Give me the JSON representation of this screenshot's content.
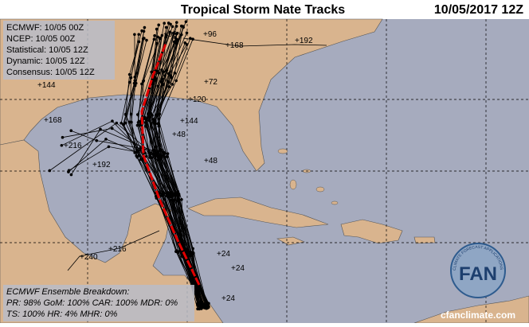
{
  "header": {
    "title": "Tropical Storm Nate Tracks",
    "date": "10/05/2017 12Z"
  },
  "legend": [
    "ECMWF: 10/05 00Z",
    "NCEP: 10/05 00Z",
    "Statistical: 10/05 12Z",
    "Dynamic: 10/05 12Z",
    "Consensus: 10/05 12Z"
  ],
  "breakdown": {
    "title": "ECMWF Ensemble Breakdown:",
    "lines": [
      "PR: 98% GoM: 100% CAR: 100% MDR: 0%",
      "TS: 100% HR: 4% MHR: 0%"
    ]
  },
  "logo": {
    "text": "FAN",
    "arc_text": "CLIMATE FORECAST APPLICATIONS NETWORK",
    "url": "cfanclimate.com"
  },
  "track_labels": [
    "+192",
    "+168",
    "+96",
    "+96",
    "+144",
    "+72",
    "+120",
    "+168",
    "+216",
    "+144",
    "+48",
    "+48",
    "+192",
    "+216",
    "+240",
    "+24",
    "+24",
    "+24"
  ]
}
